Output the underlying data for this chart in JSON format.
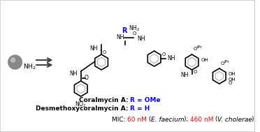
{
  "bg_color": "#ffffff",
  "border_color": "#cccccc",
  "title": "",
  "line1_black": "Coralmycin A: ",
  "line1_blue": "R = OMe",
  "line2_black": "Desmethoxycoralmycin A: ",
  "line2_blue": "R = H",
  "mic_prefix": "MIC: ",
  "mic_val1": "60 nM",
  "mic_mid": " (",
  "mic_species1": "E. faecium",
  "mic_mid2": "); ",
  "mic_val2": "460 nM",
  "mic_mid3": " (",
  "mic_species2": "V. cholerae",
  "mic_suffix": ")",
  "red_color": "#ff0000",
  "blue_color": "#0000ff",
  "black_color": "#000000"
}
